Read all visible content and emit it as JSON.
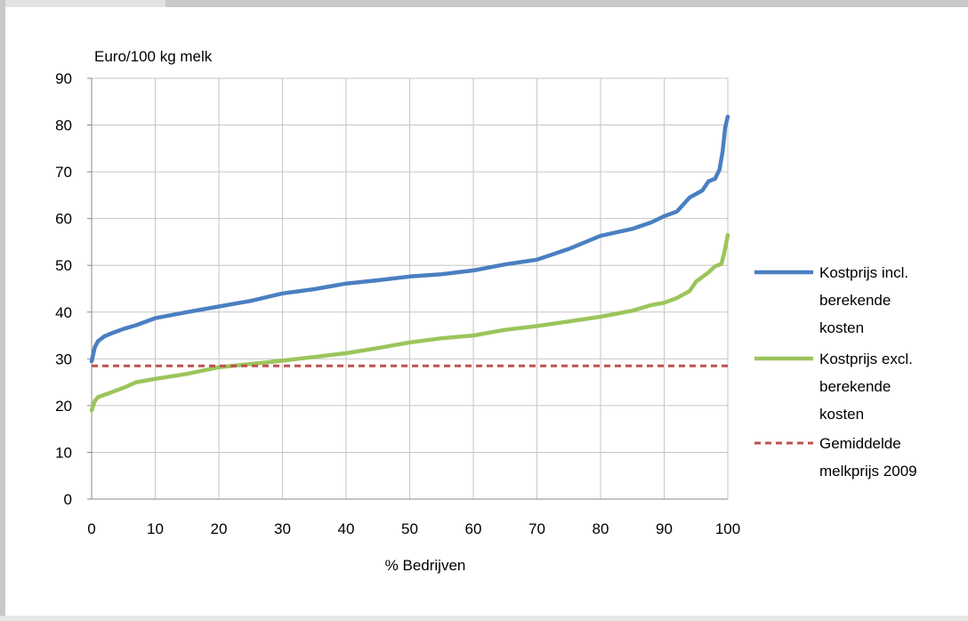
{
  "chart_data": {
    "type": "line",
    "ylabel": "Euro/100 kg melk",
    "xlabel": "% Bedrijven",
    "xlim": [
      0,
      100
    ],
    "ylim": [
      0,
      90
    ],
    "xticks": [
      "0",
      "10",
      "20",
      "30",
      "40",
      "50",
      "60",
      "70",
      "80",
      "90",
      "100"
    ],
    "yticks": [
      "0",
      "10",
      "20",
      "30",
      "40",
      "50",
      "60",
      "70",
      "80",
      "90"
    ],
    "grid": true,
    "legend_position": "right",
    "series": [
      {
        "name": "Kostprijs incl. berekende kosten",
        "legend_lines": [
          "Kostprijs incl.",
          "berekende",
          "kosten"
        ],
        "color": "#4a7fc1",
        "dashed": false,
        "x": [
          0,
          0.5,
          1,
          2,
          3,
          5,
          7,
          10,
          15,
          20,
          25,
          30,
          35,
          40,
          45,
          50,
          55,
          60,
          65,
          70,
          75,
          80,
          85,
          88,
          90,
          92,
          94,
          96,
          97,
          98,
          98.7,
          99.2,
          99.6,
          100
        ],
        "y": [
          29.5,
          32.5,
          33.8,
          34.8,
          35.4,
          36.4,
          37.2,
          38.7,
          40.0,
          41.2,
          42.4,
          44.0,
          44.9,
          46.1,
          46.8,
          47.6,
          48.1,
          48.9,
          50.2,
          51.2,
          53.5,
          56.3,
          57.8,
          59.2,
          60.5,
          61.5,
          64.5,
          66.0,
          68.0,
          68.5,
          70.5,
          74.5,
          79.5,
          81.8
        ]
      },
      {
        "name": "Kostprijs excl. berekende kosten",
        "legend_lines": [
          "Kostprijs excl.",
          "berekende",
          "kosten"
        ],
        "color": "#9bc55b",
        "dashed": false,
        "x": [
          0,
          0.5,
          1,
          2,
          3,
          5,
          7,
          10,
          15,
          20,
          25,
          30,
          35,
          40,
          45,
          50,
          55,
          60,
          65,
          70,
          75,
          80,
          85,
          88,
          90,
          92,
          94,
          95,
          97,
          98,
          99,
          99.5,
          100
        ],
        "y": [
          19.0,
          21.0,
          21.8,
          22.3,
          22.8,
          23.8,
          25.0,
          25.7,
          26.8,
          28.2,
          28.9,
          29.6,
          30.4,
          31.2,
          32.3,
          33.5,
          34.4,
          35.0,
          36.2,
          37.0,
          38.0,
          39.0,
          40.3,
          41.5,
          42.0,
          43.0,
          44.5,
          46.5,
          48.5,
          49.8,
          50.3,
          53.0,
          56.5
        ]
      },
      {
        "name": "Gemiddelde melkprijs 2009",
        "legend_lines": [
          "Gemiddelde",
          "melkprijs 2009"
        ],
        "color": "#c0504d",
        "dashed": true,
        "x": [
          0,
          100
        ],
        "y": [
          28.5,
          28.5
        ]
      }
    ]
  }
}
